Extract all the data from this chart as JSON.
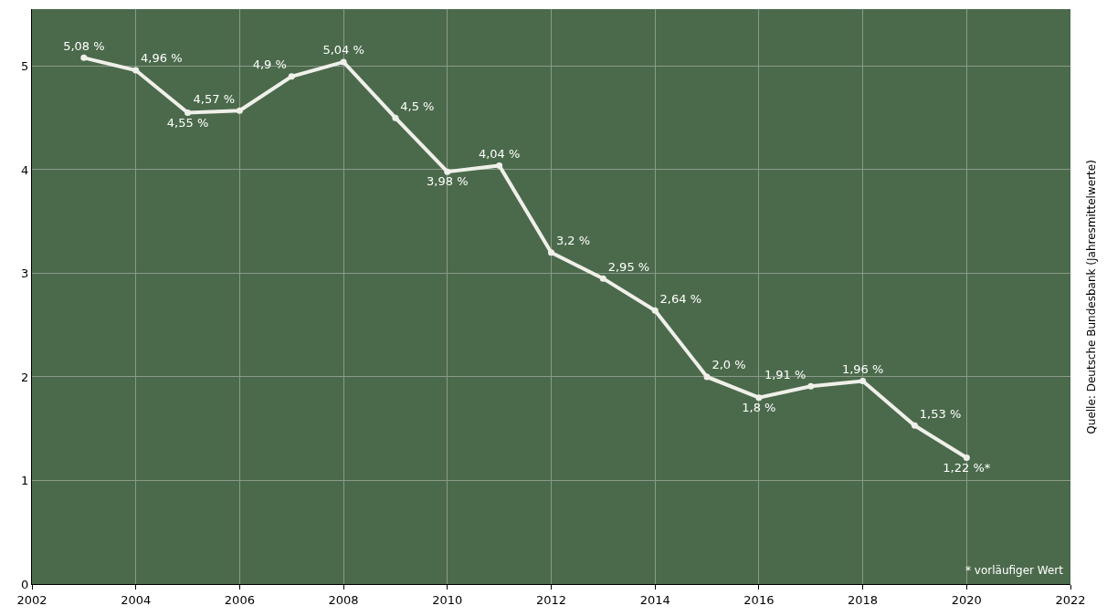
{
  "chart_data": {
    "type": "line",
    "x": [
      2003,
      2004,
      2005,
      2006,
      2007,
      2008,
      2009,
      2010,
      2011,
      2012,
      2013,
      2014,
      2015,
      2016,
      2017,
      2018,
      2019,
      2020
    ],
    "series": [
      {
        "color": "#f0f0ea",
        "values": [
          5.08,
          4.96,
          4.55,
          4.57,
          4.9,
          5.04,
          4.5,
          3.98,
          4.04,
          3.2,
          2.95,
          2.64,
          2.0,
          1.8,
          1.91,
          1.96,
          1.53,
          1.22
        ],
        "value_labels": [
          "5,08 %",
          "4,96 %",
          "4,55 %",
          "4,57 %",
          "4,9 %",
          "5,04 %",
          "4,5 %",
          "3,98 %",
          "4,04 %",
          "3,2 %",
          "2,95 %",
          "2,64 %",
          "2,0 %",
          "1,8 %",
          "1,91 %",
          "1,96 %",
          "1,53 %",
          "1,22 %*"
        ]
      }
    ],
    "xlim": [
      2002,
      2022
    ],
    "xticks": [
      2002,
      2004,
      2006,
      2008,
      2010,
      2012,
      2014,
      2016,
      2018,
      2020,
      2022
    ],
    "ylim": [
      0,
      5.55
    ],
    "yticks": [
      0,
      1,
      2,
      3,
      4,
      5
    ],
    "grid": true,
    "legend": false,
    "marker": "circle",
    "line_style": "solid",
    "annotations": [
      "* vorläufiger Wert",
      "Quelle: Deutsche Bundesbank (Jahresmittelwerte)"
    ]
  }
}
